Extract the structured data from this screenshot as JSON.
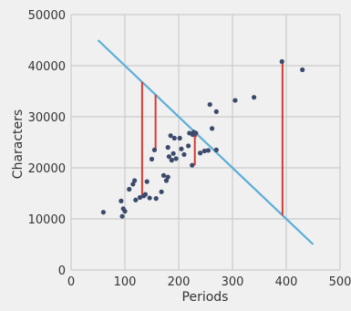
{
  "chart_data": {
    "type": "scatter",
    "title": "",
    "xlabel": "Periods",
    "ylabel": "Characters",
    "xlim": [
      0,
      500
    ],
    "ylim": [
      0,
      50000
    ],
    "x_ticks": [
      "0",
      "100",
      "200",
      "300",
      "400",
      "500"
    ],
    "y_ticks": [
      "0",
      "10000",
      "20000",
      "30000",
      "40000",
      "50000"
    ],
    "grid": true,
    "colors": {
      "background": "#f0f0f0",
      "grid": "#cbcbcb",
      "points": "#3b4a6b",
      "fit_line": "#5aaed8",
      "residuals": "#d63a2f"
    },
    "points": [
      [
        60,
        11300
      ],
      [
        93,
        13500
      ],
      [
        95,
        10500
      ],
      [
        97,
        12000
      ],
      [
        100,
        11500
      ],
      [
        108,
        15800
      ],
      [
        115,
        16800
      ],
      [
        118,
        17500
      ],
      [
        120,
        13700
      ],
      [
        128,
        14200
      ],
      [
        135,
        14500
      ],
      [
        138,
        14800
      ],
      [
        141,
        17300
      ],
      [
        146,
        14100
      ],
      [
        150,
        21700
      ],
      [
        155,
        23500
      ],
      [
        158,
        14000
      ],
      [
        168,
        15300
      ],
      [
        172,
        18500
      ],
      [
        177,
        17500
      ],
      [
        180,
        18200
      ],
      [
        180,
        24000
      ],
      [
        182,
        22200
      ],
      [
        185,
        26300
      ],
      [
        187,
        21500
      ],
      [
        190,
        22800
      ],
      [
        192,
        25800
      ],
      [
        195,
        21800
      ],
      [
        202,
        25800
      ],
      [
        205,
        23700
      ],
      [
        210,
        22600
      ],
      [
        218,
        24300
      ],
      [
        220,
        26800
      ],
      [
        225,
        20500
      ],
      [
        226,
        26500
      ],
      [
        228,
        27000
      ],
      [
        232,
        26800
      ],
      [
        240,
        22900
      ],
      [
        248,
        23300
      ],
      [
        255,
        23400
      ],
      [
        258,
        32400
      ],
      [
        262,
        27700
      ],
      [
        270,
        23500
      ],
      [
        270,
        31000
      ],
      [
        305,
        33200
      ],
      [
        340,
        33800
      ],
      [
        392,
        40800
      ],
      [
        430,
        39200
      ]
    ],
    "fit_line": {
      "x": [
        50,
        450
      ],
      "y": [
        45000,
        5000
      ]
    },
    "residuals": [
      {
        "x": 132,
        "from": 36800,
        "to": 14700
      },
      {
        "x": 157,
        "from": 34300,
        "to": 23500
      },
      {
        "x": 230,
        "from": 27000,
        "to": 20500
      },
      {
        "x": 232,
        "from": 26800,
        "to": 26000
      },
      {
        "x": 393,
        "from": 10700,
        "to": 40800
      }
    ]
  }
}
